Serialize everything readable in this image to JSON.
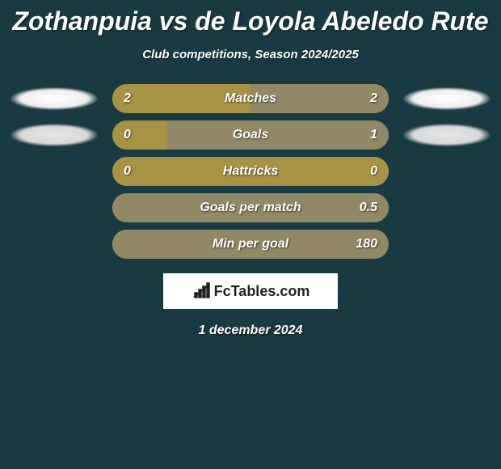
{
  "title": "Zothanpuia vs de Loyola Abeledo Rute",
  "subtitle": "Club competitions, Season 2024/2025",
  "date": "1 december 2024",
  "logo_text": "FcTables.com",
  "colors": {
    "background": "#1a3a42",
    "bar_base": "#a79345",
    "bar_accent": "#918965",
    "text": "#ffffff"
  },
  "rows": [
    {
      "label": "Matches",
      "left": "2",
      "right": "2",
      "left_pct": 50,
      "right_pct": 50,
      "base_color": "#a79345",
      "accent_color": "#918965",
      "show_ovals": true,
      "oval_style": "light"
    },
    {
      "label": "Goals",
      "left": "0",
      "right": "1",
      "left_pct": 20,
      "right_pct": 80,
      "base_color": "#a79345",
      "accent_color": "#918965",
      "show_ovals": true,
      "oval_style": "dark"
    },
    {
      "label": "Hattricks",
      "left": "0",
      "right": "0",
      "left_pct": 100,
      "right_pct": 0,
      "base_color": "#a79345",
      "accent_color": "#918965",
      "show_ovals": false
    },
    {
      "label": "Goals per match",
      "left": "",
      "right": "0.5",
      "left_pct": 0,
      "right_pct": 100,
      "base_color": "#a79345",
      "accent_color": "#918965",
      "show_ovals": false
    },
    {
      "label": "Min per goal",
      "left": "",
      "right": "180",
      "left_pct": 0,
      "right_pct": 100,
      "base_color": "#a79345",
      "accent_color": "#918965",
      "show_ovals": false
    }
  ]
}
